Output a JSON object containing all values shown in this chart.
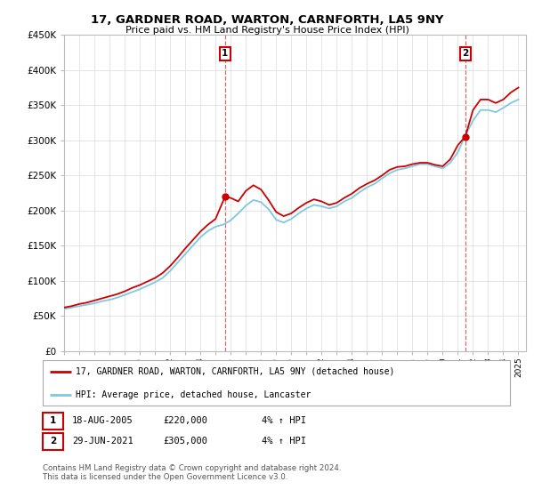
{
  "title": "17, GARDNER ROAD, WARTON, CARNFORTH, LA5 9NY",
  "subtitle": "Price paid vs. HM Land Registry's House Price Index (HPI)",
  "ylabel_ticks": [
    "£0",
    "£50K",
    "£100K",
    "£150K",
    "£200K",
    "£250K",
    "£300K",
    "£350K",
    "£400K",
    "£450K"
  ],
  "ytick_values": [
    0,
    50000,
    100000,
    150000,
    200000,
    250000,
    300000,
    350000,
    400000,
    450000
  ],
  "ylim": [
    0,
    450000
  ],
  "hpi_color": "#7ec8e3",
  "price_color": "#cc0000",
  "dashed_line_color": "#cc0000",
  "marker1_year": 2005.63,
  "marker1_price": 220000,
  "marker2_year": 2021.49,
  "marker2_price": 305000,
  "legend_label1": "17, GARDNER ROAD, WARTON, CARNFORTH, LA5 9NY (detached house)",
  "legend_label2": "HPI: Average price, detached house, Lancaster",
  "table_row1": [
    "1",
    "18-AUG-2005",
    "£220,000",
    "4% ↑ HPI"
  ],
  "table_row2": [
    "2",
    "29-JUN-2021",
    "£305,000",
    "4% ↑ HPI"
  ],
  "footer": "Contains HM Land Registry data © Crown copyright and database right 2024.\nThis data is licensed under the Open Government Licence v3.0.",
  "bg_color": "#ffffff",
  "grid_color": "#e0e0e0",
  "hpi_data": {
    "years": [
      1995.0,
      1995.5,
      1996.0,
      1996.5,
      1997.0,
      1997.5,
      1998.0,
      1998.5,
      1999.0,
      1999.5,
      2000.0,
      2000.5,
      2001.0,
      2001.5,
      2002.0,
      2002.5,
      2003.0,
      2003.5,
      2004.0,
      2004.5,
      2005.0,
      2005.5,
      2006.0,
      2006.5,
      2007.0,
      2007.5,
      2008.0,
      2008.5,
      2009.0,
      2009.5,
      2010.0,
      2010.5,
      2011.0,
      2011.5,
      2012.0,
      2012.5,
      2013.0,
      2013.5,
      2014.0,
      2014.5,
      2015.0,
      2015.5,
      2016.0,
      2016.5,
      2017.0,
      2017.5,
      2018.0,
      2018.5,
      2019.0,
      2019.5,
      2020.0,
      2020.5,
      2021.0,
      2021.5,
      2022.0,
      2022.5,
      2023.0,
      2023.5,
      2024.0,
      2024.5,
      2025.0
    ],
    "values": [
      60000,
      62000,
      64000,
      66000,
      68000,
      71000,
      73000,
      76000,
      80000,
      84000,
      88000,
      93000,
      98000,
      104000,
      114000,
      126000,
      138000,
      150000,
      162000,
      171000,
      177000,
      180000,
      186000,
      196000,
      207000,
      215000,
      212000,
      202000,
      187000,
      183000,
      188000,
      196000,
      203000,
      208000,
      206000,
      203000,
      206000,
      213000,
      218000,
      226000,
      233000,
      238000,
      246000,
      253000,
      258000,
      260000,
      263000,
      266000,
      266000,
      263000,
      260000,
      268000,
      283000,
      307000,
      328000,
      343000,
      343000,
      340000,
      346000,
      353000,
      358000
    ]
  },
  "price_data": {
    "years": [
      1995.0,
      1995.5,
      1996.0,
      1996.5,
      1997.0,
      1997.5,
      1998.0,
      1998.5,
      1999.0,
      1999.5,
      2000.0,
      2000.5,
      2001.0,
      2001.5,
      2002.0,
      2002.5,
      2003.0,
      2003.5,
      2004.0,
      2004.5,
      2005.0,
      2005.63,
      2006.0,
      2006.5,
      2007.0,
      2007.5,
      2008.0,
      2008.5,
      2009.0,
      2009.5,
      2010.0,
      2010.5,
      2011.0,
      2011.5,
      2012.0,
      2012.5,
      2013.0,
      2013.5,
      2014.0,
      2014.5,
      2015.0,
      2015.5,
      2016.0,
      2016.5,
      2017.0,
      2017.5,
      2018.0,
      2018.5,
      2019.0,
      2019.5,
      2020.0,
      2020.5,
      2021.0,
      2021.49,
      2022.0,
      2022.5,
      2023.0,
      2023.5,
      2024.0,
      2024.5,
      2025.0
    ],
    "values": [
      62000,
      64000,
      67000,
      69000,
      72000,
      75000,
      78000,
      81000,
      85000,
      90000,
      94000,
      99000,
      104000,
      111000,
      121000,
      133000,
      146000,
      158000,
      170000,
      180000,
      188000,
      220000,
      218000,
      213000,
      228000,
      236000,
      230000,
      215000,
      198000,
      192000,
      196000,
      204000,
      211000,
      216000,
      213000,
      208000,
      211000,
      218000,
      224000,
      232000,
      238000,
      243000,
      250000,
      258000,
      262000,
      263000,
      266000,
      268000,
      268000,
      265000,
      263000,
      273000,
      293000,
      305000,
      343000,
      358000,
      358000,
      353000,
      358000,
      368000,
      375000
    ]
  }
}
